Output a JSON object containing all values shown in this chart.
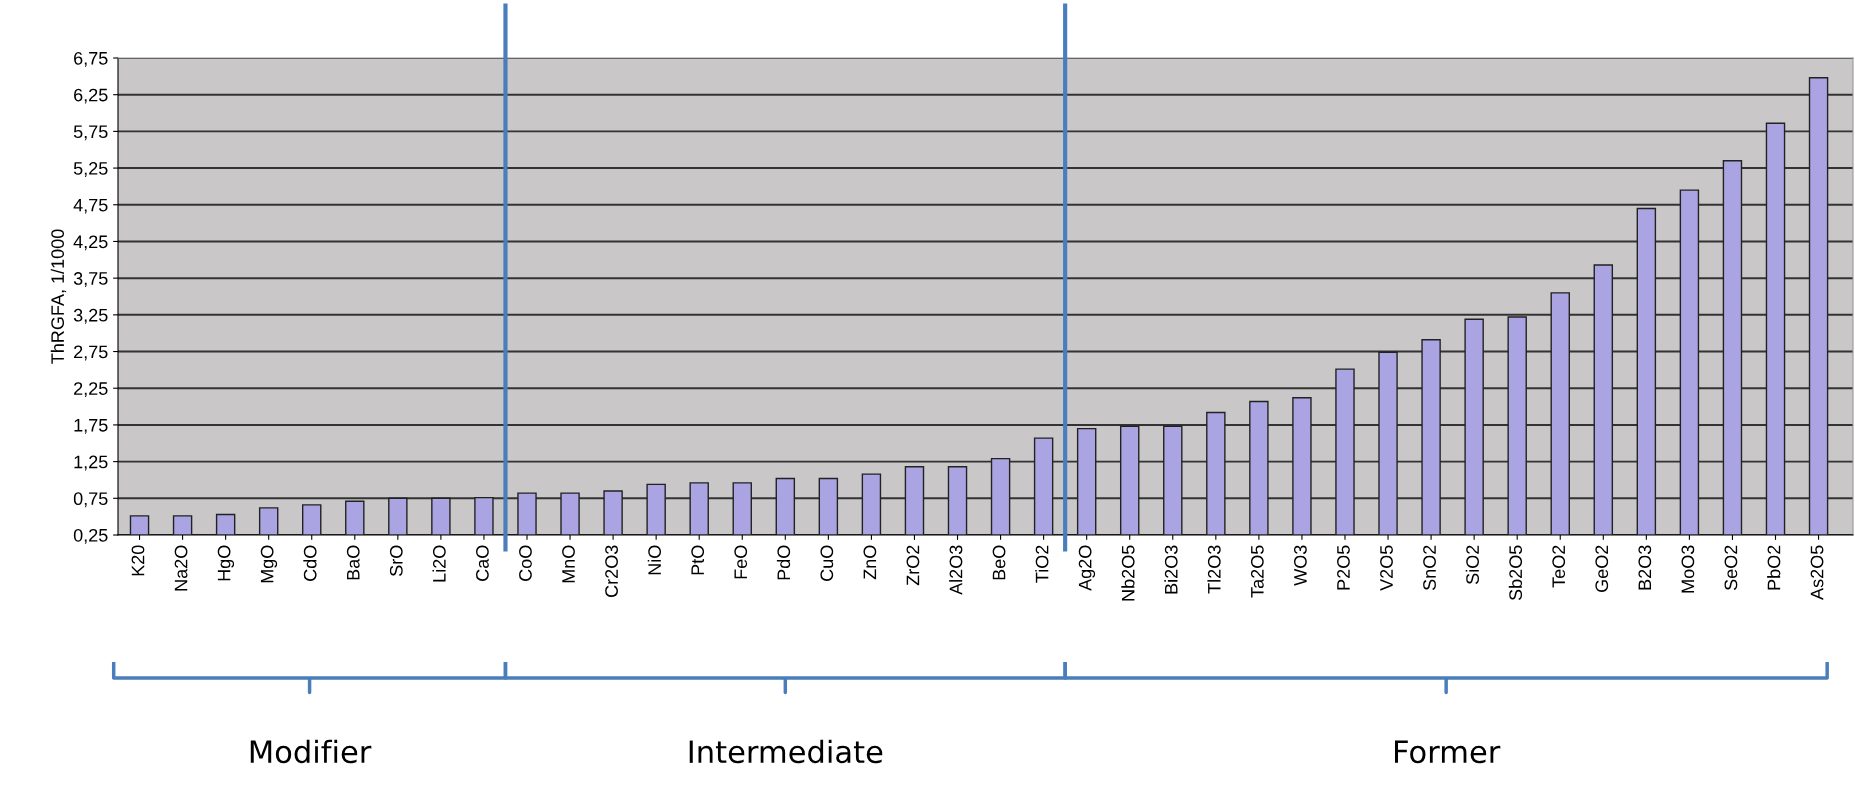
{
  "chart_data": {
    "type": "bar",
    "ylabel": "ThRGFA, 1/1000",
    "categories": [
      "K20",
      "Na2O",
      "HgO",
      "MgO",
      "CdO",
      "BaO",
      "SrO",
      "Li2O",
      "CaO",
      "CoO",
      "MnO",
      "Cr2O3",
      "NiO",
      "PtO",
      "FeO",
      "PdO",
      "CuO",
      "ZnO",
      "ZrO2",
      "Al2O3",
      "BeO",
      "TiO2",
      "Ag2O",
      "Nb2O5",
      "Bi2O3",
      "Tl2O3",
      "Ta2O5",
      "WO3",
      "P2O5",
      "V2O5",
      "SnO2",
      "SiO2",
      "Sb2O5",
      "TeO2",
      "GeO2",
      "B2O3",
      "MoO3",
      "SeO2",
      "PbO2",
      "As2O5"
    ],
    "values": [
      0.51,
      0.51,
      0.53,
      0.62,
      0.66,
      0.71,
      0.75,
      0.75,
      0.76,
      0.82,
      0.82,
      0.85,
      0.94,
      0.96,
      0.96,
      1.02,
      1.02,
      1.08,
      1.18,
      1.18,
      1.29,
      1.57,
      1.7,
      1.73,
      1.73,
      1.92,
      2.07,
      2.12,
      2.51,
      2.74,
      2.91,
      3.19,
      3.22,
      3.55,
      3.93,
      4.7,
      4.95,
      5.35,
      5.86,
      6.48
    ],
    "color": "#aaa5e2",
    "ylim": [
      0.25,
      6.75
    ],
    "yticks": [
      {
        "value": 0.25,
        "label": "0,25"
      },
      {
        "value": 0.75,
        "label": "0,75"
      },
      {
        "value": 1.25,
        "label": "1,25"
      },
      {
        "value": 1.75,
        "label": "1,75"
      },
      {
        "value": 2.25,
        "label": "2,25"
      },
      {
        "value": 2.75,
        "label": "2,75"
      },
      {
        "value": 3.25,
        "label": "3,25"
      },
      {
        "value": 3.75,
        "label": "3,75"
      },
      {
        "value": 4.25,
        "label": "4,25"
      },
      {
        "value": 4.75,
        "label": "4,75"
      },
      {
        "value": 5.25,
        "label": "5,25"
      },
      {
        "value": 5.75,
        "label": "5,75"
      },
      {
        "value": 6.25,
        "label": "6,25"
      },
      {
        "value": 6.75,
        "label": "6,75"
      }
    ],
    "grid": "y",
    "annotations": [
      "Modifier",
      "Intermediate",
      "Former"
    ]
  }
}
